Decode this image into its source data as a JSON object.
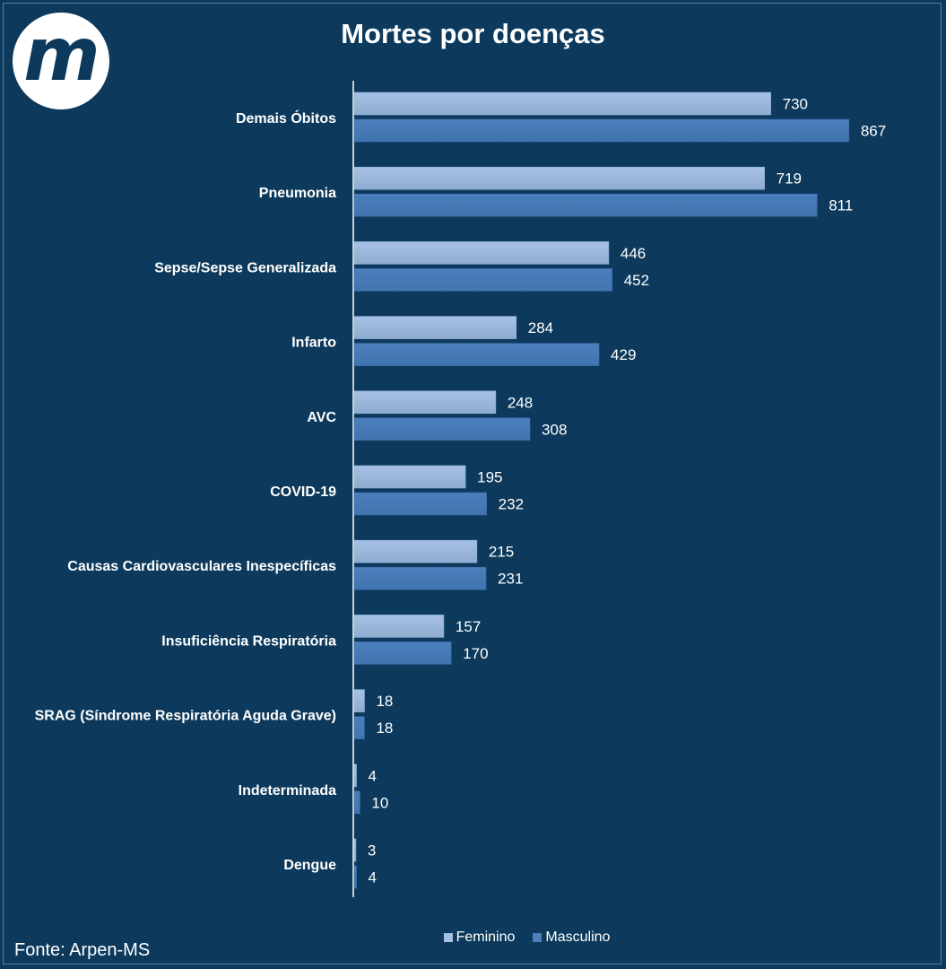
{
  "logo": {
    "text": "m"
  },
  "colors": {
    "background": "#0d3a5c",
    "feminino": "#a6c1e4",
    "masculino": "#4b7fbd"
  },
  "chart_data": {
    "type": "bar",
    "orientation": "horizontal",
    "title": "Mortes por doenças",
    "categories": [
      "Demais Óbitos",
      "Pneumonia",
      "Sepse/Sepse Generalizada",
      "Infarto",
      "AVC",
      "COVID-19",
      "Causas Cardiovasculares Inespecíficas",
      "Insuficiência Respiratória",
      "SRAG (Síndrome Respiratória Aguda Grave)",
      "Indeterminada",
      "Dengue"
    ],
    "series": [
      {
        "name": "Feminino",
        "values": [
          730,
          719,
          446,
          284,
          248,
          195,
          215,
          157,
          18,
          4,
          3
        ]
      },
      {
        "name": "Masculino",
        "values": [
          867,
          811,
          452,
          429,
          308,
          232,
          231,
          170,
          18,
          10,
          4
        ]
      }
    ],
    "xlim": [
      0,
      950
    ],
    "grid": false,
    "legend": "bottom"
  },
  "source": "Fonte: Arpen-MS"
}
